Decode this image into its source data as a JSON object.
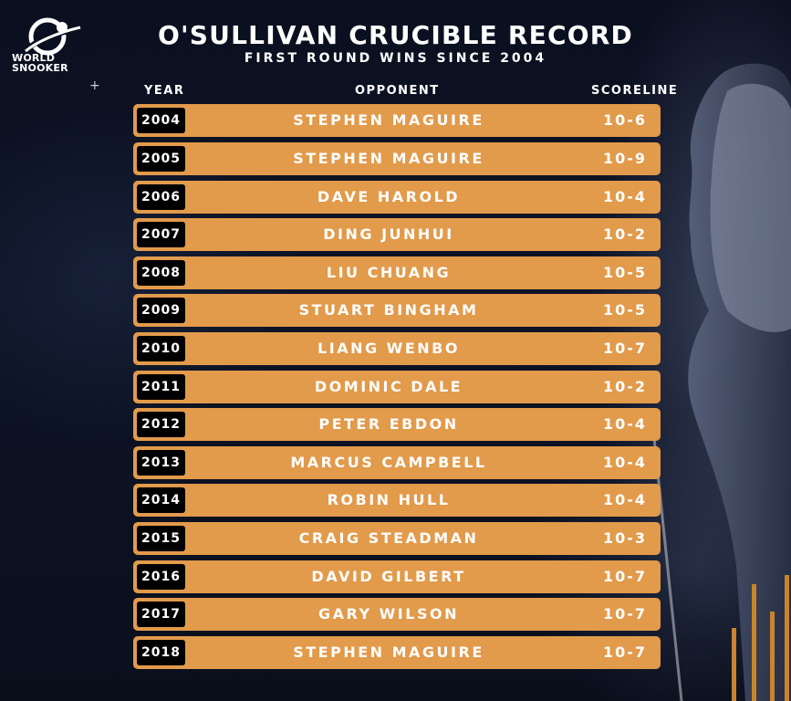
{
  "brand": {
    "line1": "WORLD",
    "line2": "SNOOKER"
  },
  "header": {
    "title": "O'SULLIVAN CRUCIBLE RECORD",
    "subtitle": "FIRST ROUND WINS SINCE 2004"
  },
  "columns": {
    "year": "YEAR",
    "opponent": "OPPONENT",
    "scoreline": "SCORELINE"
  },
  "rows": [
    {
      "year": "2004",
      "opponent": "STEPHEN MAGUIRE",
      "score": "10-6"
    },
    {
      "year": "2005",
      "opponent": "STEPHEN MAGUIRE",
      "score": "10-9"
    },
    {
      "year": "2006",
      "opponent": "DAVE HAROLD",
      "score": "10-4"
    },
    {
      "year": "2007",
      "opponent": "DING JUNHUI",
      "score": "10-2"
    },
    {
      "year": "2008",
      "opponent": "LIU CHUANG",
      "score": "10-5"
    },
    {
      "year": "2009",
      "opponent": "STUART BINGHAM",
      "score": "10-5"
    },
    {
      "year": "2010",
      "opponent": "LIANG WENBO",
      "score": "10-7"
    },
    {
      "year": "2011",
      "opponent": "DOMINIC DALE",
      "score": "10-2"
    },
    {
      "year": "2012",
      "opponent": "PETER EBDON",
      "score": "10-4"
    },
    {
      "year": "2013",
      "opponent": "MARCUS CAMPBELL",
      "score": "10-4"
    },
    {
      "year": "2014",
      "opponent": "ROBIN HULL",
      "score": "10-4"
    },
    {
      "year": "2015",
      "opponent": "CRAIG STEADMAN",
      "score": "10-3"
    },
    {
      "year": "2016",
      "opponent": "DAVID GILBERT",
      "score": "10-7"
    },
    {
      "year": "2017",
      "opponent": "GARY WILSON",
      "score": "10-7"
    },
    {
      "year": "2018",
      "opponent": "STEPHEN MAGUIRE",
      "score": "10-7"
    }
  ],
  "colors": {
    "row": "#e29a4b",
    "year_badge": "#000000",
    "text": "#ffffff",
    "background": "#0a0f1c"
  }
}
